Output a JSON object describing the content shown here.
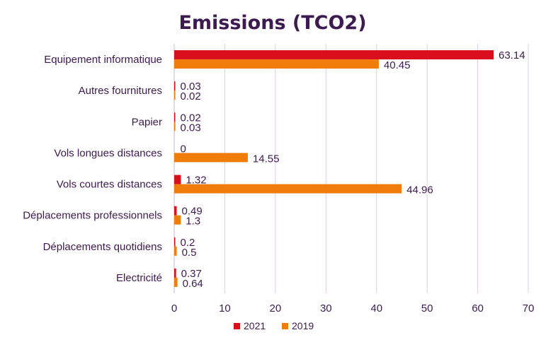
{
  "chart_data": {
    "type": "bar",
    "orientation": "horizontal",
    "title": "Emissions (TCO2)",
    "categories": [
      "Equipement informatique",
      "Autres fournitures",
      "Papier",
      "Vols longues distances",
      "Vols courtes distances",
      "Déplacements professionnels",
      "Déplacements quotidiens",
      "Electricité"
    ],
    "series": [
      {
        "name": "2021",
        "color": "#d90f1e",
        "values": [
          63.14,
          0.03,
          0.02,
          0,
          1.32,
          0.49,
          0.2,
          0.37
        ]
      },
      {
        "name": "2019",
        "color": "#f07d0a",
        "values": [
          40.45,
          0.02,
          0.03,
          14.55,
          44.96,
          1.3,
          0.5,
          0.64
        ]
      }
    ],
    "data_labels": [
      [
        "63.14",
        "0.03",
        "0.02",
        "0",
        "1.32",
        "0.49",
        "0.2",
        "0.37"
      ],
      [
        "40.45",
        "0.02",
        "0.03",
        "14.55",
        "44.96",
        "1.3",
        "0.5",
        "0.64"
      ]
    ],
    "xlim": [
      0,
      70
    ],
    "xticks": [
      0,
      10,
      20,
      30,
      40,
      50,
      60,
      70
    ],
    "xlabel": "",
    "ylabel": "",
    "grid": "vertical",
    "legend": "bottom"
  }
}
